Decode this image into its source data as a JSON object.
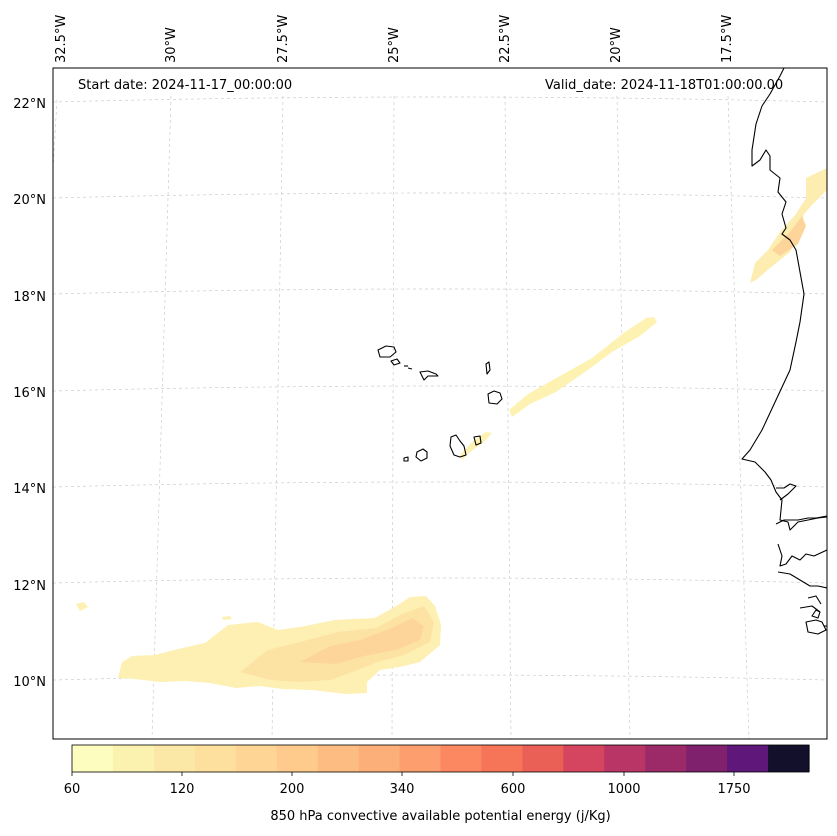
{
  "header": {
    "start_date": "Start date: 2024-11-17_00:00:00",
    "valid_date": "Valid_date: 2024-11-18T01:00:00.00"
  },
  "lon_labels": [
    "32.5°W",
    "30°W",
    "27.5°W",
    "25°W",
    "22.5°W",
    "20°W",
    "17.5°W"
  ],
  "lat_labels": [
    "22°N",
    "20°N",
    "18°N",
    "16°N",
    "14°N",
    "12°N",
    "10°N"
  ],
  "colorbar": {
    "label": "850 hPa convective available potential energy (j/Kg)",
    "tick_labels": [
      "60",
      "120",
      "200",
      "340",
      "600",
      "1000",
      "1750"
    ],
    "colors": [
      "#fcfdbf",
      "#fcf2b0",
      "#fce8a6",
      "#fde09d",
      "#fed595",
      "#fecb8d",
      "#fdbd82",
      "#fdaf7a",
      "#fd9e6f",
      "#fb8861",
      "#f67458",
      "#ea5f56",
      "#d6455f",
      "#b83566",
      "#9c2a69",
      "#7f216d",
      "#5f1879",
      "#13102b"
    ]
  },
  "map": {
    "region": "Cape Verde / West African coast",
    "gridlines": true,
    "field": "850 hPa CAPE"
  }
}
